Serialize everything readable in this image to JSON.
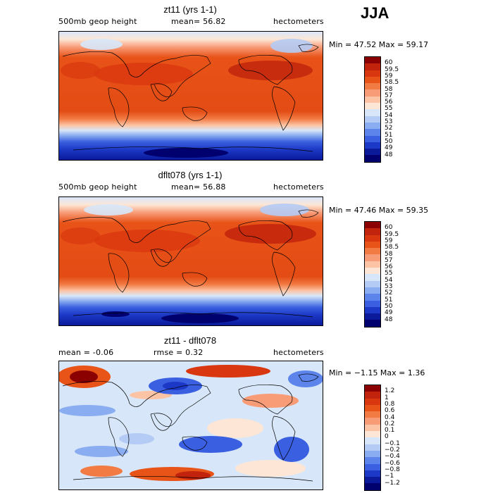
{
  "season": "JJA",
  "panels": [
    {
      "title": "zt11 (yrs 1-1)",
      "left_label": "500mb geop height",
      "mid_label": "mean=  56.82",
      "mid2_label": "",
      "right_label": "hectometers",
      "minmax": "Min =  47.52 Max =  59.17",
      "levels": [
        "60",
        "59.5",
        "59",
        "58.5",
        "58",
        "57",
        "56",
        "55",
        "54",
        "53",
        "52",
        "51",
        "50",
        "49",
        "48"
      ],
      "colors": [
        "#8b0000",
        "#c1230c",
        "#d9370f",
        "#e85318",
        "#f27a43",
        "#f89c78",
        "#fcc4a5",
        "#fde6d5",
        "#d7e7f9",
        "#b4cbf5",
        "#8aacf0",
        "#5c84ea",
        "#3a5fe0",
        "#1c38c6",
        "#0a1a9a",
        "#00006e"
      ]
    },
    {
      "title": "dflt078 (yrs 1-1)",
      "left_label": "500mb geop height",
      "mid_label": "mean=  56.88",
      "mid2_label": "",
      "right_label": "hectometers",
      "minmax": "Min =  47.46 Max =  59.35",
      "levels": [
        "60",
        "59.5",
        "59",
        "58.5",
        "58",
        "57",
        "56",
        "55",
        "54",
        "53",
        "52",
        "51",
        "50",
        "49",
        "48"
      ],
      "colors": [
        "#8b0000",
        "#c1230c",
        "#d9370f",
        "#e85318",
        "#f27a43",
        "#f89c78",
        "#fcc4a5",
        "#fde6d5",
        "#d7e7f9",
        "#b4cbf5",
        "#8aacf0",
        "#5c84ea",
        "#3a5fe0",
        "#1c38c6",
        "#0a1a9a",
        "#00006e"
      ]
    },
    {
      "title": "zt11 - dflt078",
      "left_label": "mean =   -0.06",
      "mid_label": "",
      "mid2_label": "rmse =    0.32",
      "right_label": "hectometers",
      "minmax": "Min =  −1.15 Max =    1.36",
      "levels": [
        "1.2",
        "1",
        "0.8",
        "0.6",
        "0.4",
        "0.2",
        "0.1",
        "0",
        "−0.1",
        "−0.2",
        "−0.4",
        "−0.6",
        "−0.8",
        "−1",
        "−1.2"
      ],
      "colors": [
        "#8b0000",
        "#c1230c",
        "#d9370f",
        "#e85318",
        "#f27a43",
        "#f89c78",
        "#fcc4a5",
        "#fde6d5",
        "#d7e7f9",
        "#b4cbf5",
        "#8aacf0",
        "#5c84ea",
        "#3a5fe0",
        "#1c38c6",
        "#0a1a9a",
        "#00006e"
      ]
    }
  ]
}
